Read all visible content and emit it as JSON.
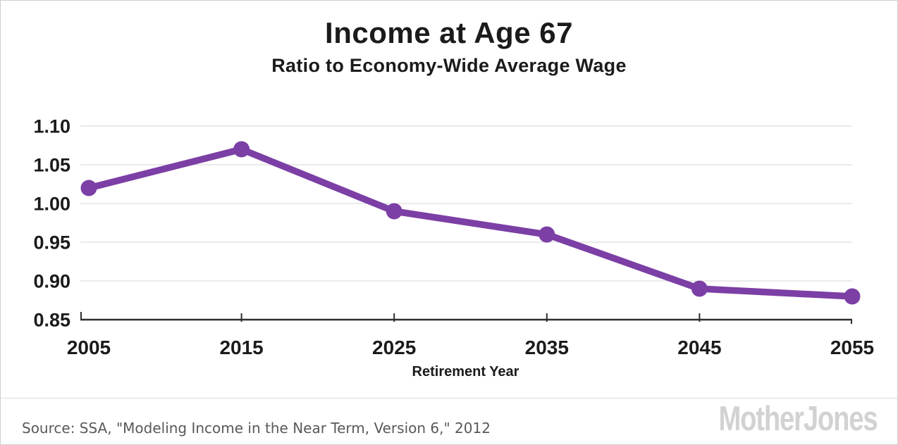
{
  "header": {
    "title": "Income at Age 67",
    "subtitle": "Ratio to Economy-Wide Average Wage"
  },
  "chart_data": {
    "type": "line",
    "title": "Income at Age 67",
    "subtitle": "Ratio to Economy-Wide Average Wage",
    "xlabel": "Retirement Year",
    "ylabel": "",
    "x": [
      2005,
      2015,
      2025,
      2035,
      2045,
      2055
    ],
    "series": [
      {
        "name": "Income at age 67, ratio to economy-wide average wage",
        "values": [
          1.02,
          1.07,
          0.99,
          0.96,
          0.89,
          0.88
        ]
      }
    ],
    "xticks": [
      2005,
      2015,
      2025,
      2035,
      2045,
      2055
    ],
    "yticks": [
      0.85,
      0.9,
      0.95,
      1.0,
      1.05,
      1.1
    ],
    "xlim": [
      2005,
      2055
    ],
    "ylim": [
      0.85,
      1.1
    ],
    "grid": true,
    "legend": false,
    "legend_position": "none",
    "marker": "circle",
    "line_color": "#7c3fa5"
  },
  "colors": {
    "line": "#7c3fa5",
    "grid": "#e3e3e3",
    "axis": "#2d2d2d",
    "tick_text": "#1b1b1b",
    "source_text": "#595959",
    "brand_gray": "#d2d2d2",
    "card_border": "#cfcfcf"
  },
  "footer": {
    "source_text": "Source: SSA, \"Modeling Income in the Near Term, Version 6,\" 2012",
    "brand_label": "MotherJones"
  }
}
